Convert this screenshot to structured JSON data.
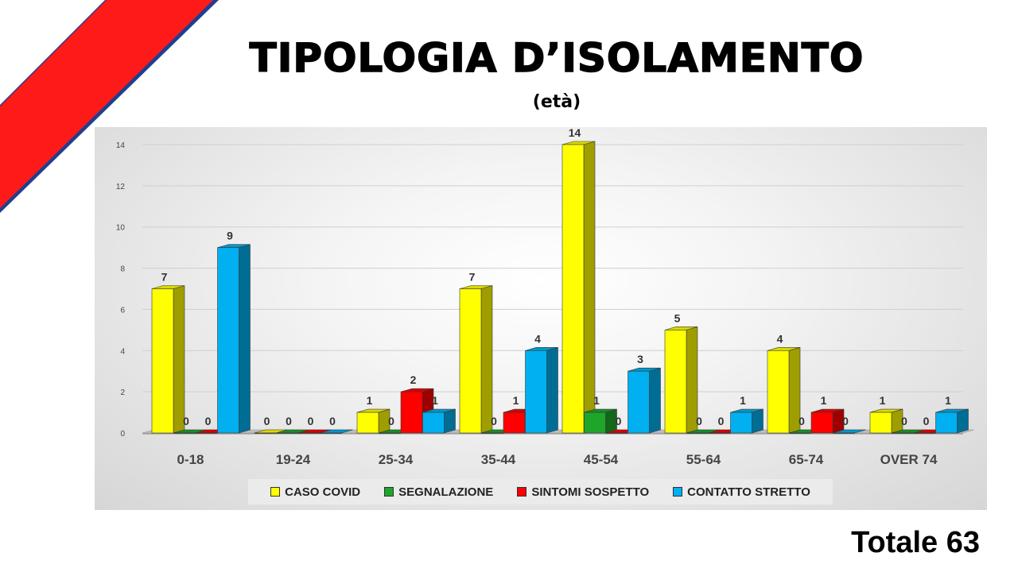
{
  "title": "TIPOLOGIA D’ISOLAMENTO",
  "subtitle": "(età)",
  "total": "Totale 63",
  "colors": {
    "stripe": "#ff1a1a",
    "stripe_edge": "#1f3f8f",
    "yellow": "#ffff00",
    "green": "#1ea62a",
    "red": "#ff0000",
    "blue": "#00b0f0"
  },
  "chart_data": {
    "type": "bar",
    "categories": [
      "0-18",
      "19-24",
      "25-34",
      "35-44",
      "45-54",
      "55-64",
      "65-74",
      "OVER 74"
    ],
    "series": [
      {
        "name": "CASO COVID",
        "color": "#ffff00",
        "values": [
          7,
          0,
          1,
          7,
          14,
          5,
          4,
          1
        ]
      },
      {
        "name": "SEGNALAZIONE",
        "color": "#1ea62a",
        "values": [
          0,
          0,
          0,
          0,
          1,
          0,
          0,
          0
        ]
      },
      {
        "name": "SINTOMI SOSPETTO",
        "color": "#ff0000",
        "values": [
          0,
          0,
          2,
          1,
          0,
          0,
          1,
          0
        ]
      },
      {
        "name": "CONTATTO STRETTO",
        "color": "#00b0f0",
        "values": [
          9,
          0,
          1,
          4,
          3,
          1,
          0,
          1
        ]
      }
    ],
    "ylim": [
      0,
      14
    ],
    "yticks": [
      0,
      2,
      4,
      6,
      8,
      10,
      12,
      14
    ],
    "grid": true,
    "legend": "bottom"
  }
}
